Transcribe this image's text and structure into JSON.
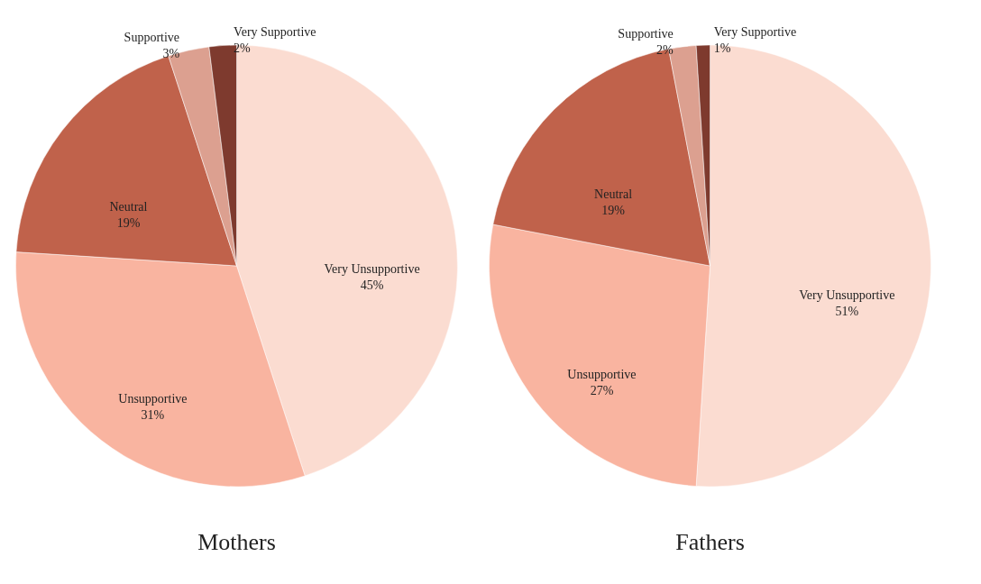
{
  "chart_data": [
    {
      "type": "pie",
      "title": "Mothers",
      "categories": [
        "Very Unsupportive",
        "Unsupportive",
        "Neutral",
        "Supportive",
        "Very Supportive"
      ],
      "values": [
        45,
        31,
        19,
        3,
        2
      ],
      "value_labels": [
        "45%",
        "31%",
        "19%",
        "3%",
        "2%"
      ],
      "colors": [
        "#fbdcd1",
        "#f9b4a0",
        "#c0624b",
        "#dca090",
        "#7e3a2e"
      ]
    },
    {
      "type": "pie",
      "title": "Fathers",
      "categories": [
        "Very Unsupportive",
        "Unsupportive",
        "Neutral",
        "Supportive",
        "Very Supportive"
      ],
      "values": [
        51,
        27,
        19,
        2,
        1
      ],
      "value_labels": [
        "51%",
        "27%",
        "19%",
        "2%",
        "1%"
      ],
      "colors": [
        "#fbdcd1",
        "#f9b4a0",
        "#c0624b",
        "#dca090",
        "#7e3a2e"
      ]
    }
  ]
}
